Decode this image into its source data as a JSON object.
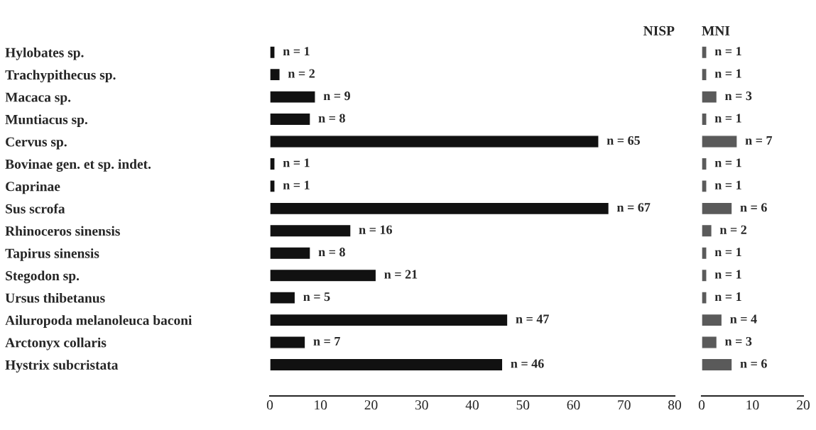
{
  "chart_data": [
    {
      "type": "bar",
      "orientation": "horizontal",
      "title": "NISP",
      "categories": [
        "Hylobates sp.",
        "Trachypithecus sp.",
        "Macaca sp.",
        "Muntiacus sp.",
        "Cervus sp.",
        "Bovinae gen. et sp. indet.",
        "Caprinae",
        "Sus scrofa",
        "Rhinoceros sinensis",
        "Tapirus sinensis",
        "Stegodon sp.",
        "Ursus thibetanus",
        "Ailuropoda melanoleuca baconi",
        "Arctonyx collaris",
        "Hystrix subcristata"
      ],
      "values": [
        1,
        2,
        9,
        8,
        65,
        1,
        1,
        67,
        16,
        8,
        21,
        5,
        47,
        7,
        46
      ],
      "value_labels": [
        "n = 1",
        "n = 2",
        "n = 9",
        "n = 8",
        "n = 65",
        "n = 1",
        "n = 1",
        "n = 67",
        "n = 16",
        "n = 8",
        "n = 21",
        "n = 5",
        "n = 47",
        "n = 7",
        "n = 46"
      ],
      "color": "#111111",
      "xlim": [
        0,
        80
      ],
      "xticks": [
        0,
        10,
        20,
        30,
        40,
        50,
        60,
        70,
        80
      ],
      "grid": false,
      "legend": false
    },
    {
      "type": "bar",
      "orientation": "horizontal",
      "title": "MNI",
      "categories": [
        null,
        null,
        null,
        null,
        null,
        null,
        null,
        null,
        null,
        null,
        null,
        null,
        null,
        null,
        null
      ],
      "values": [
        1,
        1,
        3,
        1,
        7,
        1,
        1,
        6,
        2,
        1,
        1,
        1,
        4,
        3,
        6
      ],
      "value_labels": [
        "n = 1",
        "n = 1",
        "n = 3",
        "n = 1",
        "n = 7",
        "n = 1",
        "n = 1",
        "n = 6",
        "n = 2",
        "n = 1",
        "n = 1",
        "n = 1",
        "n = 4",
        "n = 3",
        "n = 6"
      ],
      "color": "#5a5a5a",
      "xlim": [
        0,
        20
      ],
      "xticks": [
        0,
        10,
        20
      ],
      "tick_labels": "x",
      "grid": false,
      "legend": false
    }
  ]
}
